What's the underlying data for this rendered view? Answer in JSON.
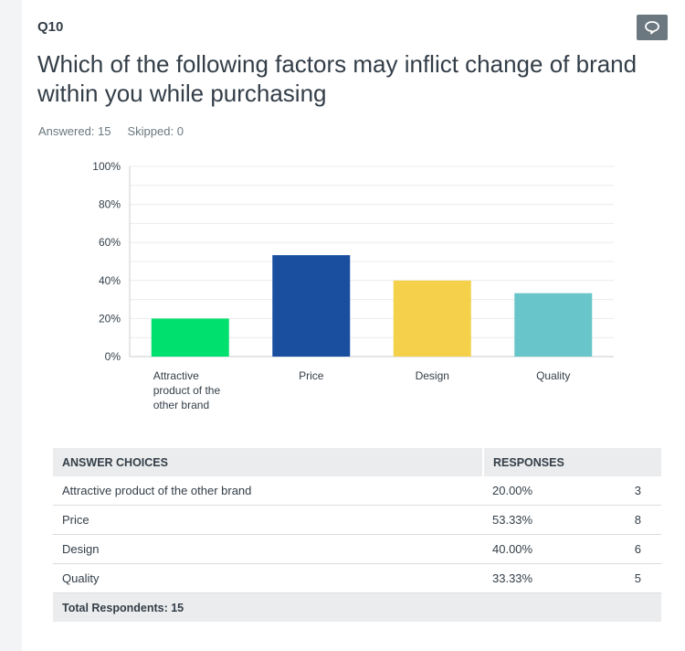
{
  "question": {
    "number": "Q10",
    "title": "Which of the following factors may inflict change of brand within you while purchasing",
    "answered": "Answered: 15",
    "skipped": "Skipped: 0"
  },
  "comment_icon": "speech-bubble-icon",
  "chart_data": {
    "type": "bar",
    "categories": [
      "Attractive product of the other brand",
      "Price",
      "Design",
      "Quality"
    ],
    "category_label_lines": [
      [
        "Attractive",
        "product of the",
        "other brand"
      ],
      [
        "Price"
      ],
      [
        "Design"
      ],
      [
        "Quality"
      ]
    ],
    "values": [
      20.0,
      53.33,
      40.0,
      33.33
    ],
    "colors": [
      "#00e06e",
      "#1a4fa0",
      "#f5d04a",
      "#68c5ca"
    ],
    "ylim": [
      0,
      100
    ],
    "yticks": [
      "0%",
      "20%",
      "40%",
      "60%",
      "80%",
      "100%"
    ],
    "grid": true
  },
  "table": {
    "headers": [
      "ANSWER CHOICES",
      "RESPONSES",
      ""
    ],
    "rows": [
      {
        "choice": "Attractive product of the other brand",
        "percent": "20.00%",
        "count": "3"
      },
      {
        "choice": "Price",
        "percent": "53.33%",
        "count": "8"
      },
      {
        "choice": "Design",
        "percent": "40.00%",
        "count": "6"
      },
      {
        "choice": "Quality",
        "percent": "33.33%",
        "count": "5"
      }
    ],
    "total_label": "Total Respondents: 15"
  }
}
